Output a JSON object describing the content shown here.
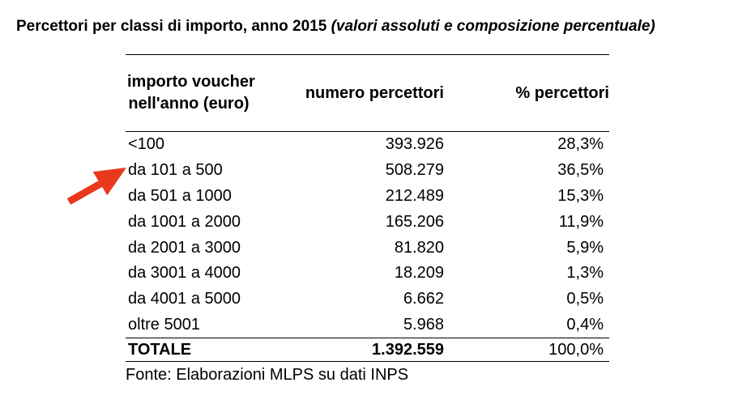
{
  "title": {
    "main": "Percettori per classi di importo, anno 2015 ",
    "subtitle": "(valori assoluti e composizione percentuale)"
  },
  "table": {
    "headers": {
      "amount_line1": "importo voucher",
      "amount_line2": "nell'anno (euro)",
      "count": "numero percettori",
      "percent": "% percettori"
    },
    "rows": [
      {
        "label": "<100",
        "count": "393.926",
        "pct": "28,3%"
      },
      {
        "label": "da 101 a 500",
        "count": "508.279",
        "pct": "36,5%"
      },
      {
        "label": "da 501 a 1000",
        "count": "212.489",
        "pct": "15,3%"
      },
      {
        "label": "da 1001 a 2000",
        "count": "165.206",
        "pct": "11,9%"
      },
      {
        "label": "da 2001 a 3000",
        "count": "81.820",
        "pct": "5,9%"
      },
      {
        "label": "da 3001 a 4000",
        "count": "18.209",
        "pct": "1,3%"
      },
      {
        "label": "da 4001 a 5000",
        "count": "6.662",
        "pct": "0,5%"
      },
      {
        "label": "oltre 5001",
        "count": "5.968",
        "pct": "0,4%"
      }
    ],
    "total": {
      "label": "TOTALE",
      "count": "1.392.559",
      "pct": "100,0%"
    },
    "source": "Fonte: Elaborazioni MLPS su dati INPS"
  },
  "annotation": {
    "arrow_color": "#e8391d",
    "arrow_points_to_row": "da 101 a 500"
  },
  "colors": {
    "text": "#000000",
    "background": "#ffffff"
  }
}
